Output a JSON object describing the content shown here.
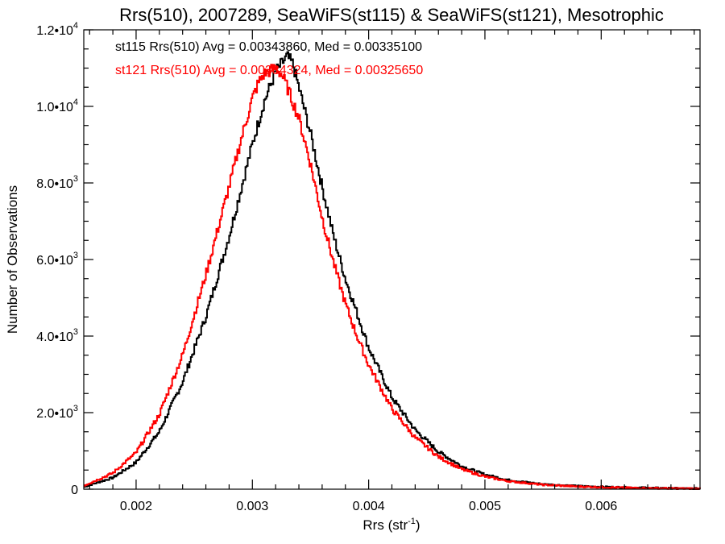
{
  "chart_data": {
    "type": "histogram-step",
    "title": "Rrs(510), 2007289, SeaWiFS(st115) & SeaWiFS(st121), Mesotrophic",
    "xlabel": "Rrs (str",
    "xlabel_sup": "-1",
    "xlabel_close": ")",
    "ylabel": "Number of Observations",
    "xlim": [
      0.00155,
      0.00685
    ],
    "ylim": [
      0,
      12000
    ],
    "xticks": [
      {
        "value": 0.002,
        "label": "0.002"
      },
      {
        "value": 0.003,
        "label": "0.003"
      },
      {
        "value": 0.004,
        "label": "0.004"
      },
      {
        "value": 0.005,
        "label": "0.005"
      },
      {
        "value": 0.006,
        "label": "0.006"
      }
    ],
    "yticks": [
      {
        "value": 0,
        "mant": "0",
        "exp": ""
      },
      {
        "value": 2000,
        "mant": "2.0•10",
        "exp": "3"
      },
      {
        "value": 4000,
        "mant": "4.0•10",
        "exp": "3"
      },
      {
        "value": 6000,
        "mant": "6.0•10",
        "exp": "3"
      },
      {
        "value": 8000,
        "mant": "8.0•10",
        "exp": "3"
      },
      {
        "value": 10000,
        "mant": "1.0•10",
        "exp": "4"
      },
      {
        "value": 12000,
        "mant": "1.2•10",
        "exp": "4"
      }
    ],
    "annotations": [
      {
        "text": "st115 Rrs(510) Avg = 0.00343860, Med = 0.00335100",
        "color": "#000000"
      },
      {
        "text": "st121 Rrs(510) Avg = 0.00334324, Med = 0.00325650",
        "color": "#ff0000"
      }
    ],
    "series": [
      {
        "color": "#000000",
        "points": [
          [
            0.00155,
            60
          ],
          [
            0.0018,
            300
          ],
          [
            0.002,
            700
          ],
          [
            0.0022,
            1500
          ],
          [
            0.0024,
            2800
          ],
          [
            0.0026,
            4500
          ],
          [
            0.0028,
            6600
          ],
          [
            0.003,
            9000
          ],
          [
            0.0031,
            10100
          ],
          [
            0.0032,
            10900
          ],
          [
            0.00325,
            11100
          ],
          [
            0.0033,
            11300
          ],
          [
            0.00335,
            11100
          ],
          [
            0.0034,
            10500
          ],
          [
            0.0035,
            9300
          ],
          [
            0.0036,
            7900
          ],
          [
            0.0037,
            6600
          ],
          [
            0.0038,
            5500
          ],
          [
            0.0039,
            4600
          ],
          [
            0.004,
            3700
          ],
          [
            0.0042,
            2400
          ],
          [
            0.0044,
            1550
          ],
          [
            0.0046,
            980
          ],
          [
            0.0048,
            600
          ],
          [
            0.005,
            380
          ],
          [
            0.0052,
            240
          ],
          [
            0.0055,
            130
          ],
          [
            0.0058,
            80
          ],
          [
            0.0062,
            45
          ],
          [
            0.0066,
            25
          ],
          [
            0.00685,
            15
          ]
        ]
      },
      {
        "color": "#ff0000",
        "points": [
          [
            0.00155,
            90
          ],
          [
            0.0018,
            420
          ],
          [
            0.002,
            950
          ],
          [
            0.0022,
            1950
          ],
          [
            0.0024,
            3500
          ],
          [
            0.0026,
            5600
          ],
          [
            0.0028,
            7900
          ],
          [
            0.0029,
            9100
          ],
          [
            0.003,
            10200
          ],
          [
            0.00305,
            10600
          ],
          [
            0.0031,
            10850
          ],
          [
            0.0032,
            11000
          ],
          [
            0.00325,
            10850
          ],
          [
            0.0033,
            10500
          ],
          [
            0.0034,
            9700
          ],
          [
            0.0035,
            8500
          ],
          [
            0.0036,
            7100
          ],
          [
            0.0037,
            5900
          ],
          [
            0.0038,
            4850
          ],
          [
            0.0039,
            4000
          ],
          [
            0.004,
            3250
          ],
          [
            0.0042,
            2100
          ],
          [
            0.0044,
            1350
          ],
          [
            0.0046,
            850
          ],
          [
            0.0048,
            520
          ],
          [
            0.005,
            330
          ],
          [
            0.0052,
            210
          ],
          [
            0.0055,
            115
          ],
          [
            0.0058,
            70
          ],
          [
            0.0062,
            38
          ],
          [
            0.0066,
            20
          ],
          [
            0.00685,
            12
          ]
        ]
      }
    ]
  }
}
